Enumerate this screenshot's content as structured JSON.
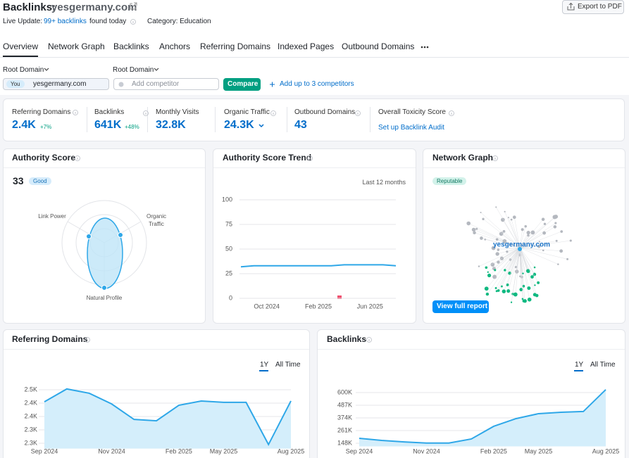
{
  "header": {
    "title": "Backlinks:",
    "domain": "yesgermany.com",
    "export": "Export to PDF",
    "live_update": "Live Update:",
    "backlinks_link": "99+ backlinks",
    "found_today": "found today",
    "category": "Category: Education"
  },
  "tabs": [
    "Overview",
    "Network Graph",
    "Backlinks",
    "Anchors",
    "Referring Domains",
    "Indexed Pages",
    "Outbound Domains"
  ],
  "filters": {
    "scope_1": "Root Domain",
    "scope_2": "Root Domain",
    "you": "You",
    "domain": "yesgermany.com",
    "competitor_placeholder": "Add competitor",
    "compare": "Compare",
    "add_competitors": "Add up to 3 competitors"
  },
  "metrics": [
    {
      "label": "Referring Domains",
      "value": "2.4K",
      "change": "+7%"
    },
    {
      "label": "Backlinks",
      "value": "641K",
      "change": "+48%"
    },
    {
      "label": "Monthly Visits",
      "value": "32.8K"
    },
    {
      "label": "Organic Traffic",
      "value": "24.3K"
    },
    {
      "label": "Outbound Domains",
      "value": "43"
    },
    {
      "label": "Overall Toxicity Score",
      "link": "Set up Backlink Audit"
    }
  ],
  "authority": {
    "title": "Authority Score",
    "score": 33,
    "badge": "Good",
    "axes": [
      "Link Power",
      "Organic Traffic",
      "Natural Profile"
    ]
  },
  "network": {
    "title": "Network Graph",
    "badge": "Reputable",
    "center": "yesgermany.com",
    "button": "View full report"
  },
  "chart_data": [
    {
      "type": "line",
      "title": "Authority Score Trend",
      "subtitle": "Last 12 months",
      "categories": [
        null,
        null,
        "Oct 2024",
        null,
        null,
        null,
        "Feb 2025",
        null,
        null,
        null,
        "Jun 2025",
        null,
        null
      ],
      "values": [
        32,
        33,
        33,
        33,
        33,
        33,
        33,
        33,
        34,
        34,
        34,
        34,
        33
      ],
      "color": "#2ea7e8",
      "ylim": [
        0,
        100
      ],
      "yticks": [
        0,
        25,
        50,
        75,
        100
      ],
      "grid": true
    },
    {
      "type": "line",
      "title": "Referring Domains",
      "range_options": [
        "1Y",
        "All Time"
      ],
      "categories": [
        "Sep 2024",
        null,
        null,
        "Nov 2024",
        null,
        null,
        "Feb 2025",
        null,
        "May 2025",
        null,
        null,
        "Aug 2025"
      ],
      "values": [
        2455,
        2503,
        2487,
        2447,
        2389,
        2384,
        2442,
        2458,
        2453,
        2453,
        2295,
        2458
      ],
      "color": "#2ea7e8",
      "area": true,
      "area_color": "#d4eefb",
      "ylim": [
        2280,
        2520
      ],
      "yticks": [
        {
          "value": 2500,
          "label": "2.5K"
        },
        {
          "value": 2450,
          "label": "2.4K"
        },
        {
          "value": 2400,
          "label": "2.4K"
        },
        {
          "value": 2350,
          "label": "2.3K"
        },
        {
          "value": 2300,
          "label": "2.3K"
        }
      ],
      "grid": true
    },
    {
      "type": "line",
      "title": "Backlinks",
      "range_options": [
        "1Y",
        "All Time"
      ],
      "categories": [
        "Sep 2024",
        null,
        null,
        "Nov 2024",
        null,
        null,
        "Feb 2025",
        null,
        "May 2025",
        null,
        null,
        "Aug 2025"
      ],
      "values": [
        192000,
        173000,
        160000,
        150000,
        150000,
        186000,
        299000,
        368000,
        412000,
        424000,
        431000,
        626000
      ],
      "color": "#2ea7e8",
      "area": true,
      "area_color": "#d4eefb",
      "ylim": [
        120000,
        640000
      ],
      "yticks": [
        {
          "value": 600000,
          "label": "600K"
        },
        {
          "value": 487000,
          "label": "487K"
        },
        {
          "value": 374000,
          "label": "374K"
        },
        {
          "value": 261000,
          "label": "261K"
        },
        {
          "value": 148000,
          "label": "148K"
        }
      ],
      "grid": true
    }
  ]
}
